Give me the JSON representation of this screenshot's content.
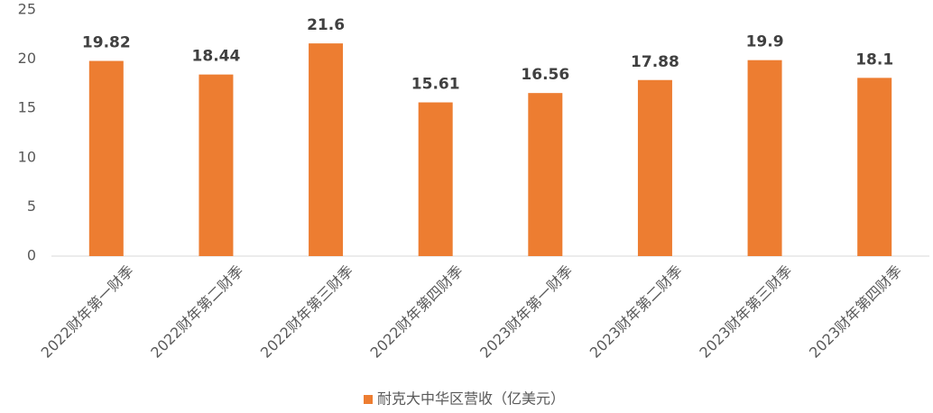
{
  "chart_data": {
    "type": "bar",
    "categories": [
      "2022财年第一财季",
      "2022财年第二财季",
      "2022财年第三财季",
      "2022财年第四财季",
      "2023财年第一财季",
      "2023财年第二财季",
      "2023财年第三财季",
      "2023财年第四财季"
    ],
    "series": [
      {
        "name": "耐克大中华区营收（亿美元）",
        "color": "#ed7d31",
        "values": [
          19.82,
          18.44,
          21.6,
          15.61,
          16.56,
          17.88,
          19.9,
          18.1
        ]
      }
    ],
    "ylim": [
      0,
      25
    ],
    "yticks": [
      0,
      5,
      10,
      15,
      20,
      25
    ],
    "grid": false,
    "legend": "bottom"
  }
}
